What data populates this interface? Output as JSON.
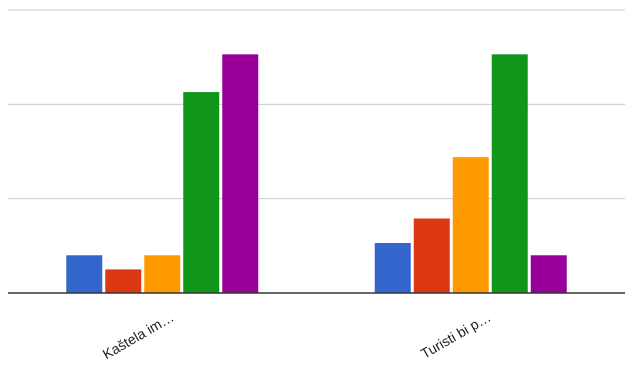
{
  "chart_data": {
    "type": "bar",
    "title": "",
    "xlabel": "",
    "ylabel": "",
    "categories": [
      "Kaštela im…",
      "Turisti bi p…"
    ],
    "ylim": [
      0,
      30
    ],
    "grid": true,
    "legend": "none",
    "series": [
      {
        "color": "#3366cc",
        "values": [
          4,
          5.3
        ]
      },
      {
        "color": "#dc3912",
        "values": [
          2.5,
          7.9
        ]
      },
      {
        "color": "#ff9900",
        "values": [
          4,
          14.4
        ]
      },
      {
        "color": "#109618",
        "values": [
          21.3,
          25.3
        ]
      },
      {
        "color": "#990099",
        "values": [
          25.3,
          4
        ]
      }
    ]
  }
}
